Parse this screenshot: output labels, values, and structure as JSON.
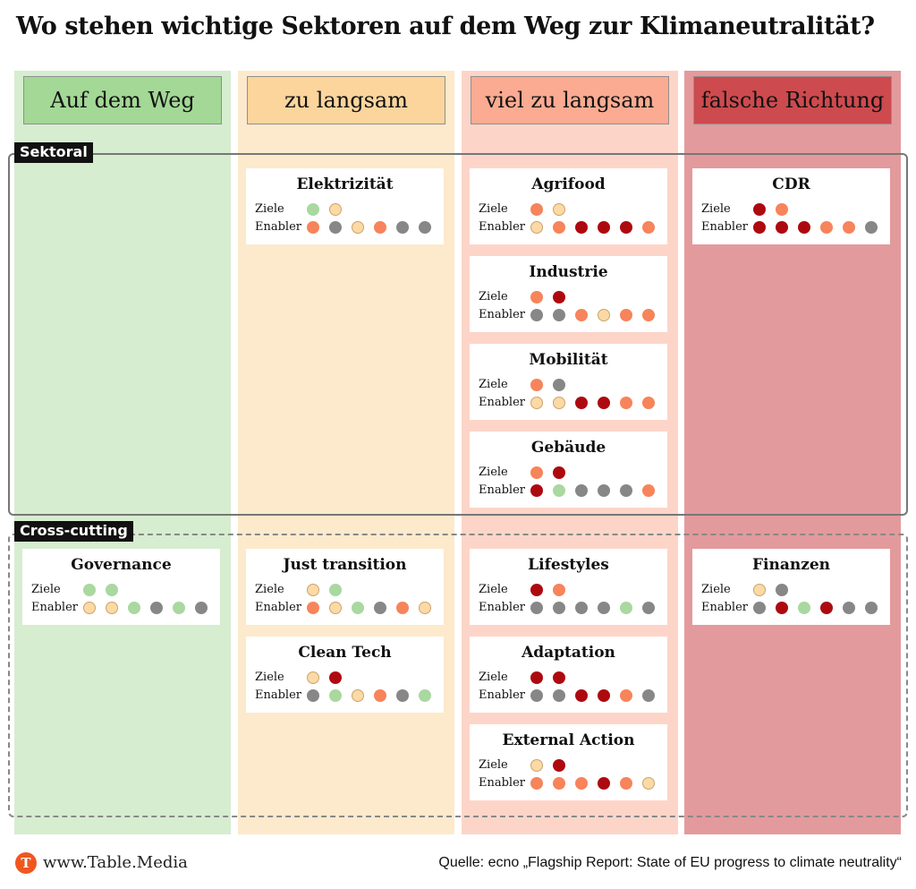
{
  "title": "Wo stehen wichtige Sektoren auf dem Weg zur Klimaneutralität?",
  "legend_colors": {
    "green": "#a9d8a0",
    "light_orange": "#fcd9a5",
    "orange": "#f7845a",
    "dark_red": "#ad0a10",
    "grey": "#878787"
  },
  "columns": [
    {
      "label": "Auf dem Weg",
      "background": "#d6edd0",
      "header_color": "#a3d896"
    },
    {
      "label": "zu langsam",
      "background": "#fde9cc",
      "header_color": "#fcd59c"
    },
    {
      "label": "viel zu langsam",
      "background": "#fdd5c8",
      "header_color": "#fbab91"
    },
    {
      "label": "falsche Richtung",
      "background": "#e39a9c",
      "header_color": "#cd4a4e"
    }
  ],
  "groups": {
    "sectoral": "Sektoral",
    "cross_cutting": "Cross-cutting"
  },
  "row_labels": {
    "ziele": "Ziele",
    "enabler": "Enabler"
  },
  "cards": [
    {
      "name": "Elektrizität",
      "column": 1,
      "group": "sectoral",
      "ziele": [
        "green",
        "light_orange"
      ],
      "enabler": [
        "orange",
        "grey",
        "light_orange",
        "orange",
        "grey",
        "grey"
      ]
    },
    {
      "name": "Agrifood",
      "column": 2,
      "group": "sectoral",
      "ziele": [
        "orange",
        "light_orange"
      ],
      "enabler": [
        "light_orange",
        "orange",
        "dark_red",
        "dark_red",
        "dark_red",
        "orange"
      ]
    },
    {
      "name": "Industrie",
      "column": 2,
      "group": "sectoral",
      "ziele": [
        "orange",
        "dark_red"
      ],
      "enabler": [
        "grey",
        "grey",
        "orange",
        "light_orange",
        "orange",
        "orange"
      ]
    },
    {
      "name": "Mobilität",
      "column": 2,
      "group": "sectoral",
      "ziele": [
        "orange",
        "grey"
      ],
      "enabler": [
        "light_orange",
        "light_orange",
        "dark_red",
        "dark_red",
        "orange",
        "orange"
      ]
    },
    {
      "name": "Gebäude",
      "column": 2,
      "group": "sectoral",
      "ziele": [
        "orange",
        "dark_red"
      ],
      "enabler": [
        "dark_red",
        "green",
        "grey",
        "grey",
        "grey",
        "orange"
      ]
    },
    {
      "name": "CDR",
      "column": 3,
      "group": "sectoral",
      "ziele": [
        "dark_red",
        "orange"
      ],
      "enabler": [
        "dark_red",
        "dark_red",
        "dark_red",
        "orange",
        "orange",
        "grey"
      ]
    },
    {
      "name": "Governance",
      "column": 0,
      "group": "cross_cutting",
      "ziele": [
        "green",
        "green"
      ],
      "enabler": [
        "light_orange",
        "light_orange",
        "green",
        "grey",
        "green",
        "grey"
      ]
    },
    {
      "name": "Just transition",
      "column": 1,
      "group": "cross_cutting",
      "ziele": [
        "light_orange",
        "green"
      ],
      "enabler": [
        "orange",
        "light_orange",
        "green",
        "grey",
        "orange",
        "light_orange"
      ]
    },
    {
      "name": "Clean Tech",
      "column": 1,
      "group": "cross_cutting",
      "ziele": [
        "light_orange",
        "dark_red"
      ],
      "enabler": [
        "grey",
        "green",
        "light_orange",
        "orange",
        "grey",
        "green"
      ]
    },
    {
      "name": "Lifestyles",
      "column": 2,
      "group": "cross_cutting",
      "ziele": [
        "dark_red",
        "orange"
      ],
      "enabler": [
        "grey",
        "grey",
        "grey",
        "grey",
        "green",
        "grey"
      ]
    },
    {
      "name": "Adaptation",
      "column": 2,
      "group": "cross_cutting",
      "ziele": [
        "dark_red",
        "dark_red"
      ],
      "enabler": [
        "grey",
        "grey",
        "dark_red",
        "dark_red",
        "orange",
        "grey"
      ]
    },
    {
      "name": "External Action",
      "column": 2,
      "group": "cross_cutting",
      "ziele": [
        "light_orange",
        "dark_red"
      ],
      "enabler": [
        "orange",
        "orange",
        "orange",
        "dark_red",
        "orange",
        "light_orange"
      ]
    },
    {
      "name": "Finanzen",
      "column": 3,
      "group": "cross_cutting",
      "ziele": [
        "light_orange",
        "grey"
      ],
      "enabler": [
        "grey",
        "dark_red",
        "green",
        "dark_red",
        "grey",
        "grey"
      ]
    }
  ],
  "footer": {
    "logo_letter": "T",
    "site": "www.Table.Media",
    "source": "Quelle: ecno „Flagship Report: State of EU progress to climate neutrality“"
  }
}
